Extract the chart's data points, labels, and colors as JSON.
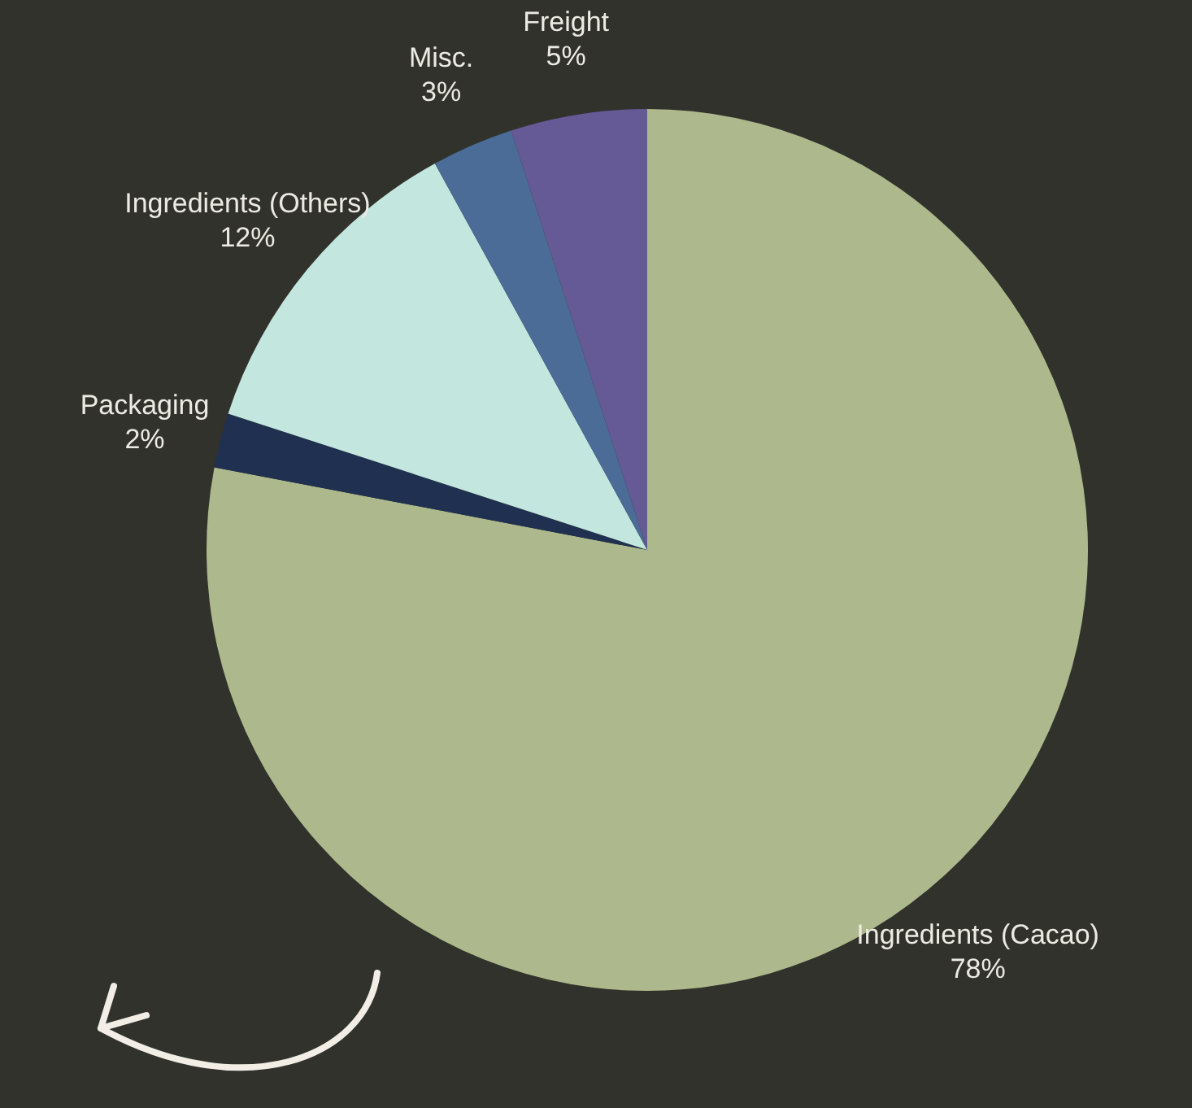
{
  "chart_data": {
    "type": "pie",
    "categories": [
      "Ingredients (Cacao)",
      "Packaging",
      "Ingredients (Others)",
      "Misc.",
      "Freight"
    ],
    "values": [
      78,
      2,
      12,
      3,
      5
    ],
    "colors": [
      "#adb98c",
      "#1f3050",
      "#c3e6df",
      "#4a6c96",
      "#655a96"
    ],
    "value_labels": [
      "78%",
      "2%",
      "12%",
      "3%",
      "5%"
    ],
    "legend": false
  }
}
